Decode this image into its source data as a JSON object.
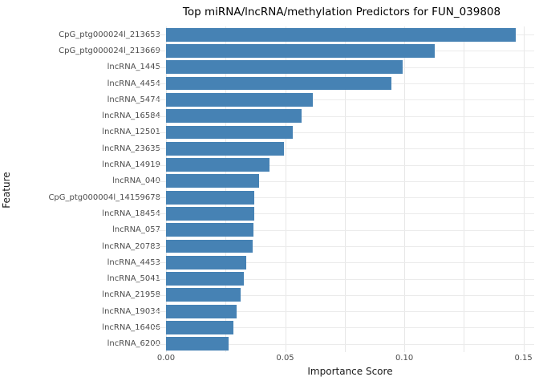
{
  "figure": {
    "title": "Top miRNA/lncRNA/methylation Predictors for FUN_039808",
    "xlabel": "Importance Score",
    "ylabel": "Feature"
  },
  "chart_data": {
    "type": "bar",
    "orientation": "horizontal",
    "title": "Top miRNA/lncRNA/methylation Predictors for FUN_039808",
    "xlabel": "Importance Score",
    "ylabel": "Feature",
    "categories": [
      "CpG_ptg000024l_213653",
      "CpG_ptg000024l_213669",
      "lncRNA_1445",
      "lncRNA_4454",
      "lncRNA_5474",
      "lncRNA_16584",
      "lncRNA_12501",
      "lncRNA_23635",
      "lncRNA_14919",
      "lncRNA_040",
      "CpG_ptg000004l_14159678",
      "lncRNA_18454",
      "lncRNA_057",
      "lncRNA_20783",
      "lncRNA_4453",
      "lncRNA_5041",
      "lncRNA_21958",
      "lncRNA_19034",
      "lncRNA_16406",
      "lncRNA_6200"
    ],
    "values": [
      0.1467,
      0.1126,
      0.0994,
      0.0947,
      0.0616,
      0.0568,
      0.0531,
      0.0494,
      0.0433,
      0.0389,
      0.037,
      0.0369,
      0.0366,
      0.0362,
      0.0338,
      0.0325,
      0.0314,
      0.0297,
      0.0284,
      0.0264
    ],
    "x_tick_values": [
      0.0,
      0.05,
      0.1,
      0.15
    ],
    "x_tick_labels": [
      "0.00",
      "0.05",
      "0.10",
      "0.15"
    ],
    "xlim": [
      0,
      0.1545
    ],
    "grid": true,
    "grid_step": 0.025,
    "legend_position": "none",
    "bar_color": "#4682B4",
    "grid_color": "#e7e7e7"
  }
}
